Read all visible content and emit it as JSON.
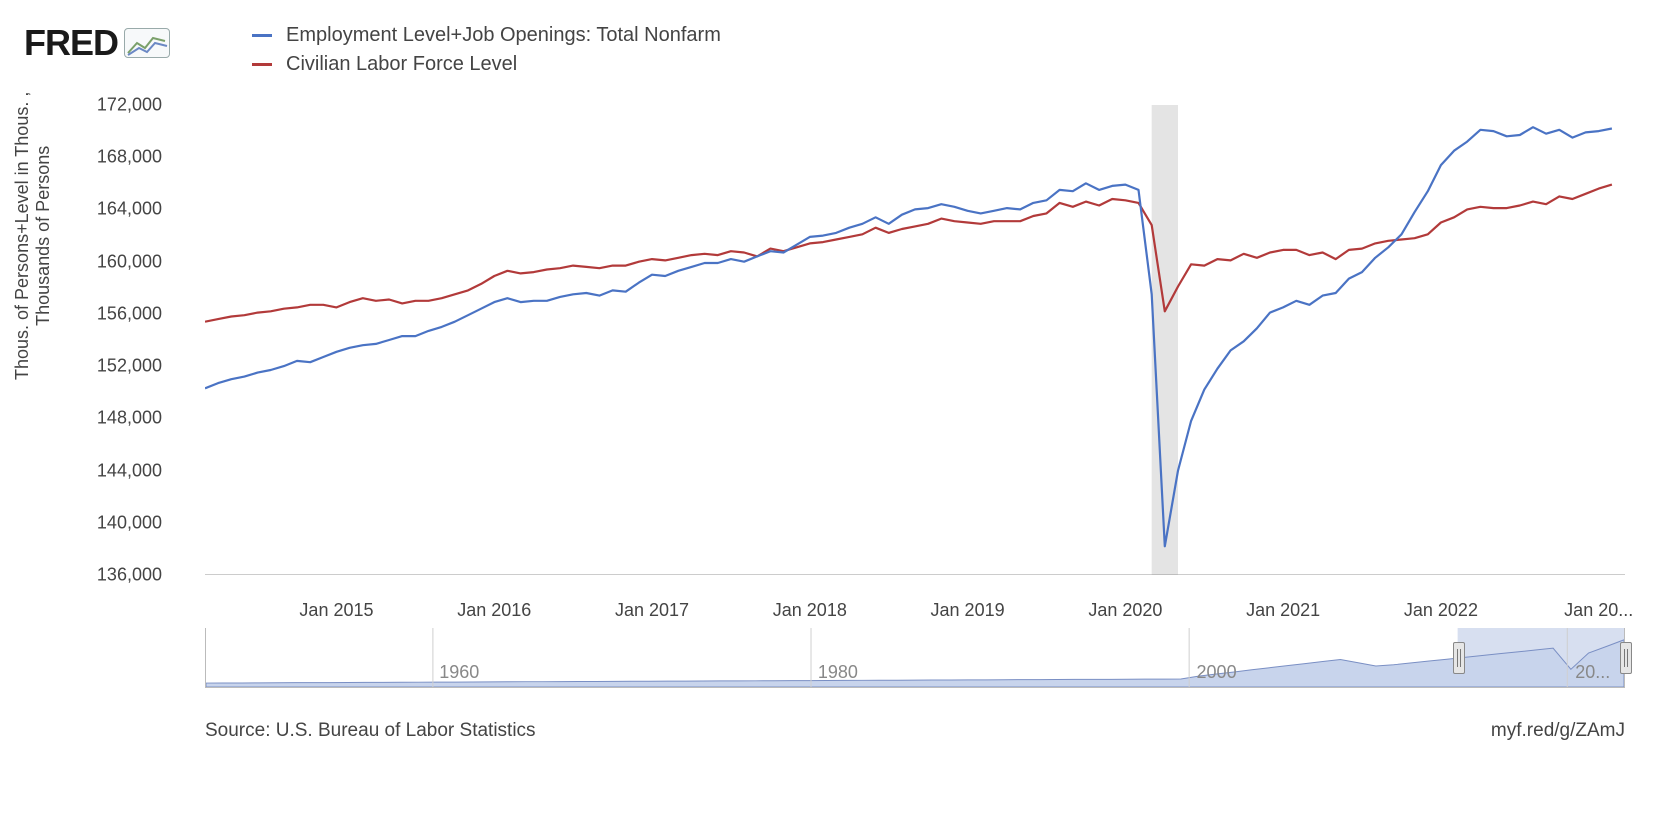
{
  "logo_text": "FRED",
  "legend": {
    "series1": {
      "label": "Employment Level+Job Openings: Total Nonfarm",
      "color": "#4a73c4"
    },
    "series2": {
      "label": "Civilian Labor Force Level",
      "color": "#b23a3a"
    }
  },
  "chart": {
    "type": "line",
    "y_axis_label_line1": "Thous. of Persons+Level in Thous. ,",
    "y_axis_label_line2": "Thousands of Persons",
    "ylim": [
      136000,
      172000
    ],
    "ytick_step": 4000,
    "yticks": [
      136000,
      140000,
      144000,
      148000,
      152000,
      156000,
      160000,
      164000,
      168000,
      172000
    ],
    "ytick_labels": [
      "136,000",
      "140,000",
      "144,000",
      "148,000",
      "152,000",
      "156,000",
      "160,000",
      "164,000",
      "168,000",
      "172,000"
    ],
    "x_start": "2014-03",
    "x_end": "2023-03",
    "xticks": [
      "Jan 2015",
      "Jan 2016",
      "Jan 2017",
      "Jan 2018",
      "Jan 2019",
      "Jan 2020",
      "Jan 2021",
      "Jan 2022",
      "Jan 20..."
    ],
    "xtick_positions_months": [
      10,
      22,
      34,
      46,
      58,
      70,
      82,
      94,
      106
    ],
    "total_months": 108,
    "recession_band": {
      "start_month": 72,
      "end_month": 74,
      "color": "#e4e4e4"
    },
    "grid_color": "#eeeeee",
    "baseline_color": "#999999",
    "background_color": "#ffffff",
    "line_width": 2.2,
    "series1_color": "#4a73c4",
    "series2_color": "#b23a3a",
    "series1_values": [
      150300,
      150700,
      151000,
      151200,
      151500,
      151700,
      152000,
      152400,
      152300,
      152700,
      153100,
      153400,
      153600,
      153700,
      154000,
      154300,
      154300,
      154700,
      155000,
      155400,
      155900,
      156400,
      156900,
      157200,
      156900,
      157000,
      157000,
      157300,
      157500,
      157600,
      157400,
      157800,
      157700,
      158400,
      159000,
      158900,
      159300,
      159600,
      159900,
      159900,
      160200,
      160000,
      160400,
      160800,
      160700,
      161300,
      161900,
      162000,
      162200,
      162600,
      162900,
      163400,
      162900,
      163600,
      164000,
      164100,
      164400,
      164200,
      163900,
      163700,
      163900,
      164100,
      164000,
      164500,
      164700,
      165500,
      165400,
      166000,
      165500,
      165800,
      165900,
      165500,
      157500,
      138200,
      144000,
      147800,
      150200,
      151800,
      153200,
      153900,
      154900,
      156100,
      156500,
      157000,
      156700,
      157400,
      157600,
      158700,
      159200,
      160300,
      161100,
      162100,
      163800,
      165400,
      167400,
      168500,
      169200,
      170100,
      170000,
      169600,
      169700,
      170300,
      169800,
      170100,
      169500,
      169900,
      170000,
      170200
    ],
    "series2_values": [
      155400,
      155600,
      155800,
      155900,
      156100,
      156200,
      156400,
      156500,
      156700,
      156700,
      156500,
      156900,
      157200,
      157000,
      157100,
      156800,
      157000,
      157000,
      157200,
      157500,
      157800,
      158300,
      158900,
      159300,
      159100,
      159200,
      159400,
      159500,
      159700,
      159600,
      159500,
      159700,
      159700,
      160000,
      160200,
      160100,
      160300,
      160500,
      160600,
      160500,
      160800,
      160700,
      160400,
      161000,
      160800,
      161100,
      161400,
      161500,
      161700,
      161900,
      162100,
      162600,
      162200,
      162500,
      162700,
      162900,
      163300,
      163100,
      163000,
      162900,
      163100,
      163100,
      163100,
      163500,
      163700,
      164500,
      164200,
      164600,
      164300,
      164800,
      164700,
      164500,
      162800,
      156200,
      158100,
      159800,
      159700,
      160200,
      160100,
      160600,
      160300,
      160700,
      160900,
      160900,
      160500,
      160700,
      160200,
      160900,
      161000,
      161400,
      161600,
      161700,
      161800,
      162100,
      163000,
      163400,
      164000,
      164200,
      164100,
      164100,
      164300,
      164600,
      164400,
      165000,
      164800,
      165200,
      165600,
      165900
    ]
  },
  "overview": {
    "start_year": 1948,
    "end_year": 2023,
    "labels": [
      "1960",
      "1980",
      "2000",
      "20..."
    ],
    "label_years": [
      1960,
      1980,
      2000,
      2020
    ],
    "selection_start_year": 2014.2,
    "selection_end_year": 2023,
    "selection_color": "#b6c5e3",
    "line_color": "#7a8fc4"
  },
  "footer": {
    "source": "Source: U.S. Bureau of Labor Statistics",
    "shortlink": "myf.red/g/ZAmJ"
  }
}
